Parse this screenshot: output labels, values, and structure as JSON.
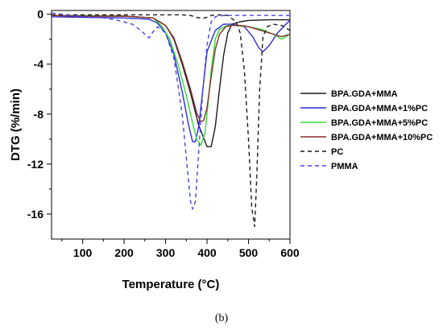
{
  "caption": "(b)",
  "chart_data": {
    "type": "line",
    "title": "",
    "xlabel": "Temperature (°C)",
    "ylabel": "DTG (%/min)",
    "xlim": [
      25,
      600
    ],
    "ylim": [
      -18,
      0.3
    ],
    "x_ticks": [
      100,
      200,
      300,
      400,
      500,
      600
    ],
    "x_minor_ticks": [
      50,
      150,
      250,
      350,
      450,
      550
    ],
    "y_ticks": [
      0,
      -4,
      -8,
      -12,
      -16
    ],
    "y_minor_ticks": [
      -2,
      -6,
      -10,
      -14
    ],
    "grid": false,
    "legend_position": "right",
    "series": [
      {
        "name": "BPA.GDA+MMA",
        "color": "#1a1a1a",
        "dash": "solid",
        "x": [
          25,
          100,
          200,
          270,
          300,
          320,
          340,
          360,
          380,
          400,
          410,
          420,
          430,
          440,
          450,
          460,
          480,
          500,
          550,
          600
        ],
        "y": [
          -0.1,
          -0.15,
          -0.15,
          -0.3,
          -0.9,
          -2.0,
          -4.0,
          -6.3,
          -8.9,
          -10.6,
          -10.6,
          -9.0,
          -6.0,
          -3.3,
          -1.5,
          -0.8,
          -0.6,
          -0.5,
          -0.45,
          -0.45
        ]
      },
      {
        "name": "BPA.GDA+MMA+1%PC",
        "color": "#2b2bd6",
        "dash": "solid",
        "x": [
          25,
          100,
          200,
          260,
          280,
          300,
          320,
          340,
          355,
          365,
          372,
          380,
          390,
          400,
          420,
          440,
          460,
          490,
          510,
          525,
          535,
          550,
          570,
          590,
          600
        ],
        "y": [
          -0.2,
          -0.25,
          -0.3,
          -0.4,
          -0.7,
          -1.5,
          -3.2,
          -6.2,
          -8.8,
          -10.2,
          -10.2,
          -9.0,
          -6.0,
          -3.0,
          -1.3,
          -0.8,
          -0.8,
          -1.0,
          -1.8,
          -2.7,
          -3.0,
          -2.5,
          -1.5,
          -0.8,
          -0.5
        ]
      },
      {
        "name": "BPA.GDA+MMA+5%PC",
        "color": "#33dd33",
        "dash": "solid",
        "x": [
          25,
          100,
          200,
          270,
          290,
          310,
          330,
          350,
          365,
          375,
          385,
          395,
          400,
          410,
          420,
          430,
          450,
          470,
          500,
          530,
          560,
          580,
          600
        ],
        "y": [
          -0.1,
          -0.1,
          -0.15,
          -0.3,
          -0.9,
          -2.0,
          -4.0,
          -6.5,
          -8.7,
          -10.0,
          -10.5,
          -9.5,
          -8.0,
          -4.5,
          -2.0,
          -1.2,
          -0.9,
          -0.9,
          -1.0,
          -1.2,
          -1.6,
          -2.0,
          -1.6
        ]
      },
      {
        "name": "BPA.GDA+MMA+10%PC",
        "color": "#8b2b2b",
        "dash": "solid",
        "x": [
          25,
          100,
          200,
          270,
          300,
          320,
          340,
          360,
          375,
          385,
          392,
          400,
          410,
          420,
          430,
          445,
          460,
          480,
          500,
          530,
          560,
          580,
          600
        ],
        "y": [
          -0.1,
          -0.15,
          -0.15,
          -0.3,
          -0.9,
          -1.9,
          -3.8,
          -6.0,
          -7.9,
          -8.6,
          -8.5,
          -7.5,
          -5.0,
          -2.8,
          -1.6,
          -1.0,
          -0.9,
          -0.9,
          -1.0,
          -1.3,
          -1.6,
          -1.8,
          -1.6
        ]
      },
      {
        "name": "PC",
        "color": "#1a1a1a",
        "dash": "5,4",
        "x": [
          25,
          100,
          200,
          300,
          340,
          360,
          380,
          395,
          410,
          430,
          450,
          470,
          480,
          490,
          500,
          508,
          515,
          520,
          527,
          535,
          545,
          560,
          580,
          600
        ],
        "y": [
          -0.05,
          -0.05,
          -0.05,
          -0.05,
          -0.05,
          -0.1,
          -0.3,
          -0.3,
          -0.1,
          -0.05,
          -0.1,
          -0.6,
          -1.5,
          -4.5,
          -10.0,
          -15.5,
          -17.0,
          -13.0,
          -6.0,
          -1.8,
          -1.0,
          -0.8,
          -0.9,
          -1.3
        ]
      },
      {
        "name": "PMMA",
        "color": "#4747e6",
        "dash": "5,4",
        "x": [
          25,
          60,
          100,
          150,
          180,
          220,
          240,
          250,
          260,
          270,
          280,
          300,
          320,
          340,
          350,
          360,
          365,
          372,
          380,
          390,
          400,
          410,
          420,
          440,
          470,
          520,
          600
        ],
        "y": [
          0.1,
          -0.05,
          -0.2,
          -0.3,
          -0.45,
          -0.8,
          -1.3,
          -1.6,
          -1.9,
          -1.4,
          -1.0,
          -1.5,
          -3.5,
          -8.0,
          -11.5,
          -15.0,
          -15.6,
          -15.0,
          -11.0,
          -6.0,
          -2.5,
          -0.6,
          -0.2,
          -0.1,
          -0.1,
          -0.1,
          -0.1
        ]
      }
    ]
  }
}
